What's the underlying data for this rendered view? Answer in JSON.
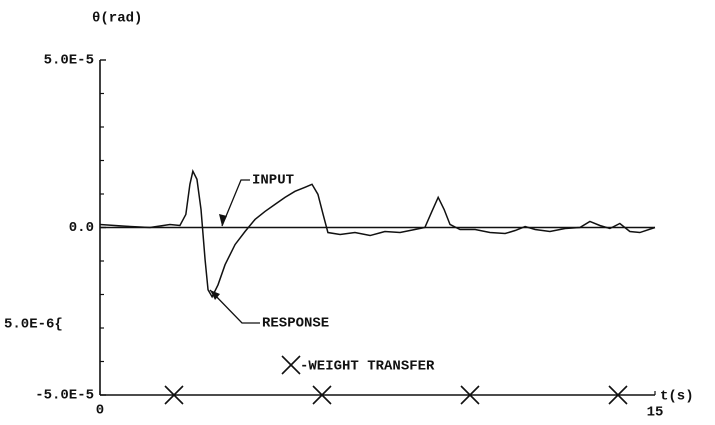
{
  "chart_data": {
    "type": "line",
    "ylabel": "θ(rad)",
    "xlabel": "t(s)",
    "xlim": [
      0,
      15
    ],
    "xticks": [
      0,
      15
    ],
    "ylim": [
      -5e-05,
      5e-05
    ],
    "yticks": [
      {
        "value": 5e-05,
        "label": "5.0E-5"
      },
      {
        "value": 0,
        "label": "0.0"
      },
      {
        "value": -5e-05,
        "label": "-5.0E-5"
      }
    ],
    "yminorticks": [
      4e-05,
      3e-05,
      2e-05,
      1e-05,
      -1e-05,
      -2e-05,
      -3e-05,
      -4e-05
    ],
    "series": [
      {
        "name": "INPUT",
        "color": "#111111",
        "x": [
          0,
          15
        ],
        "values": [
          0,
          0
        ]
      },
      {
        "name": "RESPONSE",
        "color": "#111111",
        "x": [
          0,
          0.81,
          1.35,
          1.89,
          2.16,
          2.32,
          2.43,
          2.51,
          2.62,
          2.73,
          2.84,
          2.92,
          3.03,
          3.19,
          3.38,
          3.65,
          3.92,
          4.19,
          4.46,
          4.73,
          5,
          5.27,
          5.54,
          5.73,
          5.89,
          6.03,
          6.16,
          6.49,
          6.89,
          7.3,
          7.7,
          8.11,
          8.51,
          8.78,
          8.97,
          9.14,
          9.3,
          9.46,
          9.73,
          10.14,
          10.54,
          10.95,
          11.22,
          11.49,
          11.76,
          12.16,
          12.57,
          12.97,
          13.24,
          13.51,
          13.78,
          14.05,
          14.32,
          14.59,
          15
        ],
        "values": [
          9e-07,
          3e-07,
          0,
          9e-07,
          6e-07,
          3.9e-06,
          1.29e-05,
          1.68e-05,
          1.44e-05,
          5.4e-06,
          -9.6e-06,
          -1.86e-05,
          -2.07e-05,
          -1.71e-05,
          -1.11e-05,
          -5.1e-06,
          -1.2e-06,
          2.4e-06,
          4.8e-06,
          6.9e-06,
          9e-06,
          1.08e-05,
          1.2e-05,
          1.29e-05,
          9.9e-06,
          3.9e-06,
          -1.5e-06,
          -2.1e-06,
          -1.5e-06,
          -2.4e-06,
          -1.2e-06,
          -1.5e-06,
          -6e-07,
          0,
          4.8e-06,
          9e-06,
          5.4e-06,
          9e-07,
          -6e-07,
          -6e-07,
          -1.5e-06,
          -1.8e-06,
          -9e-07,
          3e-07,
          -6e-07,
          -1.2e-06,
          -3e-07,
          0,
          1.8e-06,
          6e-07,
          -3e-07,
          1.2e-06,
          -1.2e-06,
          -1.5e-06,
          0
        ]
      }
    ],
    "markers": {
      "name": "-WEIGHT TRANSFER",
      "color": "#111111",
      "x": [
        2,
        6,
        10,
        14
      ]
    },
    "annotations": [
      "5.0E-6{"
    ]
  }
}
